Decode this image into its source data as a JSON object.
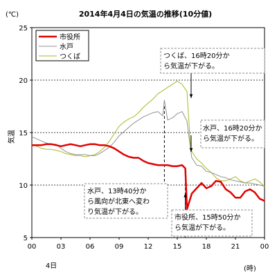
{
  "chart_data": {
    "type": "line",
    "title": "2014年4月4日の気温の推移(10分値)",
    "yunit": "(℃)",
    "ylabel": "気温",
    "xunit": "(時)",
    "xdate": "4日",
    "ylim": [
      5,
      25
    ],
    "xlim": [
      0,
      24
    ],
    "yticks": [
      "5",
      "10",
      "15",
      "20",
      "25"
    ],
    "xticks": [
      "00",
      "03",
      "06",
      "09",
      "12",
      "15",
      "18",
      "21",
      "00"
    ],
    "gridlines_y": [
      10,
      15,
      20
    ],
    "legend_placement": "top-left",
    "series": [
      {
        "name": "市役所",
        "color": "#e00000",
        "x": [
          0,
          0.5,
          1,
          1.5,
          2,
          2.5,
          3,
          3.5,
          4,
          4.5,
          5,
          5.5,
          6,
          6.5,
          7,
          7.5,
          8,
          8.5,
          9,
          9.5,
          10,
          10.5,
          11,
          11.5,
          12,
          12.5,
          13,
          13.5,
          14,
          14.5,
          15,
          15.5,
          15.83,
          16,
          16.5,
          17,
          17.5,
          18,
          18.5,
          19,
          19.5,
          20,
          20.5,
          21,
          21.5,
          22,
          22.5,
          23,
          23.5,
          24
        ],
        "values": [
          13.8,
          13.8,
          13.8,
          13.9,
          13.9,
          13.8,
          13.7,
          13.8,
          13.9,
          13.8,
          13.7,
          13.8,
          13.9,
          13.9,
          13.8,
          13.8,
          13.7,
          13.5,
          13.2,
          12.9,
          12.7,
          12.6,
          12.6,
          12.3,
          12.1,
          12.0,
          11.9,
          11.9,
          11.9,
          11.8,
          11.8,
          11.9,
          11.6,
          7.7,
          9.2,
          9.7,
          10.2,
          9.7,
          9.9,
          10.4,
          10.3,
          9.6,
          9.3,
          8.8,
          8.8,
          9.4,
          9.6,
          9.3,
          8.7,
          8.5
        ]
      },
      {
        "name": "水戸",
        "color": "#909090",
        "x": [
          0,
          0.5,
          1,
          1.5,
          2,
          2.5,
          3,
          3.5,
          4,
          4.5,
          5,
          5.5,
          6,
          6.5,
          7,
          7.5,
          8,
          8.5,
          9,
          9.5,
          10,
          10.5,
          11,
          11.5,
          12,
          12.5,
          13,
          13.5,
          13.67,
          14,
          14.5,
          15,
          15.5,
          16,
          16.33,
          16.5,
          17,
          17.5,
          18,
          18.5,
          19,
          19.5,
          20,
          20.5,
          21,
          21.5,
          22,
          22.5,
          23,
          23.5,
          24
        ],
        "values": [
          14.6,
          14.4,
          14.2,
          14.0,
          13.9,
          13.9,
          13.5,
          13.2,
          13.0,
          12.9,
          12.9,
          12.9,
          12.8,
          12.8,
          13.0,
          13.3,
          13.6,
          14.1,
          14.7,
          15.1,
          15.5,
          15.9,
          16.2,
          16.5,
          16.7,
          16.9,
          17.0,
          16.6,
          18.1,
          16.2,
          16.4,
          16.8,
          17.0,
          16.1,
          13.7,
          12.6,
          11.9,
          11.8,
          11.3,
          11.2,
          11.0,
          10.8,
          10.7,
          10.5,
          10.4,
          10.3,
          10.2,
          10.2,
          10.1,
          10.0,
          9.9
        ]
      },
      {
        "name": "つくば",
        "color": "#a8b820",
        "x": [
          0,
          0.5,
          1,
          1.5,
          2,
          2.5,
          3,
          3.5,
          4,
          4.5,
          5,
          5.5,
          6,
          6.5,
          7,
          7.5,
          8,
          8.5,
          9,
          9.5,
          10,
          10.5,
          11,
          11.5,
          12,
          12.5,
          13,
          13.5,
          14,
          14.5,
          15,
          15.5,
          16,
          16.33,
          16.5,
          17,
          17.5,
          18,
          18.5,
          19,
          19.5,
          20,
          20.5,
          21,
          21.5,
          22,
          22.5,
          23,
          23.5,
          24
        ],
        "values": [
          13.9,
          13.7,
          13.5,
          13.4,
          13.4,
          13.3,
          13.2,
          13.0,
          12.9,
          12.8,
          12.8,
          12.7,
          12.8,
          12.9,
          13.2,
          13.6,
          14.2,
          14.9,
          15.6,
          16.0,
          16.3,
          16.5,
          16.9,
          17.4,
          17.8,
          18.2,
          18.7,
          19.0,
          19.3,
          19.6,
          19.9,
          19.6,
          18.9,
          14.2,
          13.2,
          12.5,
          12.1,
          11.6,
          11.2,
          10.7,
          10.4,
          10.4,
          10.6,
          10.8,
          10.4,
          10.2,
          10.4,
          10.6,
          10.3,
          9.8
        ]
      }
    ],
    "event_markers": [
      {
        "x": 13.67,
        "label": "水戸、13時40分から風向が北東へ変わり気温が下がる。"
      },
      {
        "x": 15.83,
        "label": "市役所、15時50分から気温が下がる。"
      }
    ],
    "annotations": [
      {
        "name": "tsukuba-note",
        "text": "つくば、16時20分から気温が下がる。"
      },
      {
        "name": "mito-temp-note",
        "text": "水戸、16時20分から気温が下がる。"
      },
      {
        "name": "mito-wind-note",
        "text": "水戸、13時40分から風向が北東へ変わり気温が下がる。"
      },
      {
        "name": "shiyakusho-note",
        "text": "市役所、15時50分から気温が下がる。"
      }
    ]
  }
}
